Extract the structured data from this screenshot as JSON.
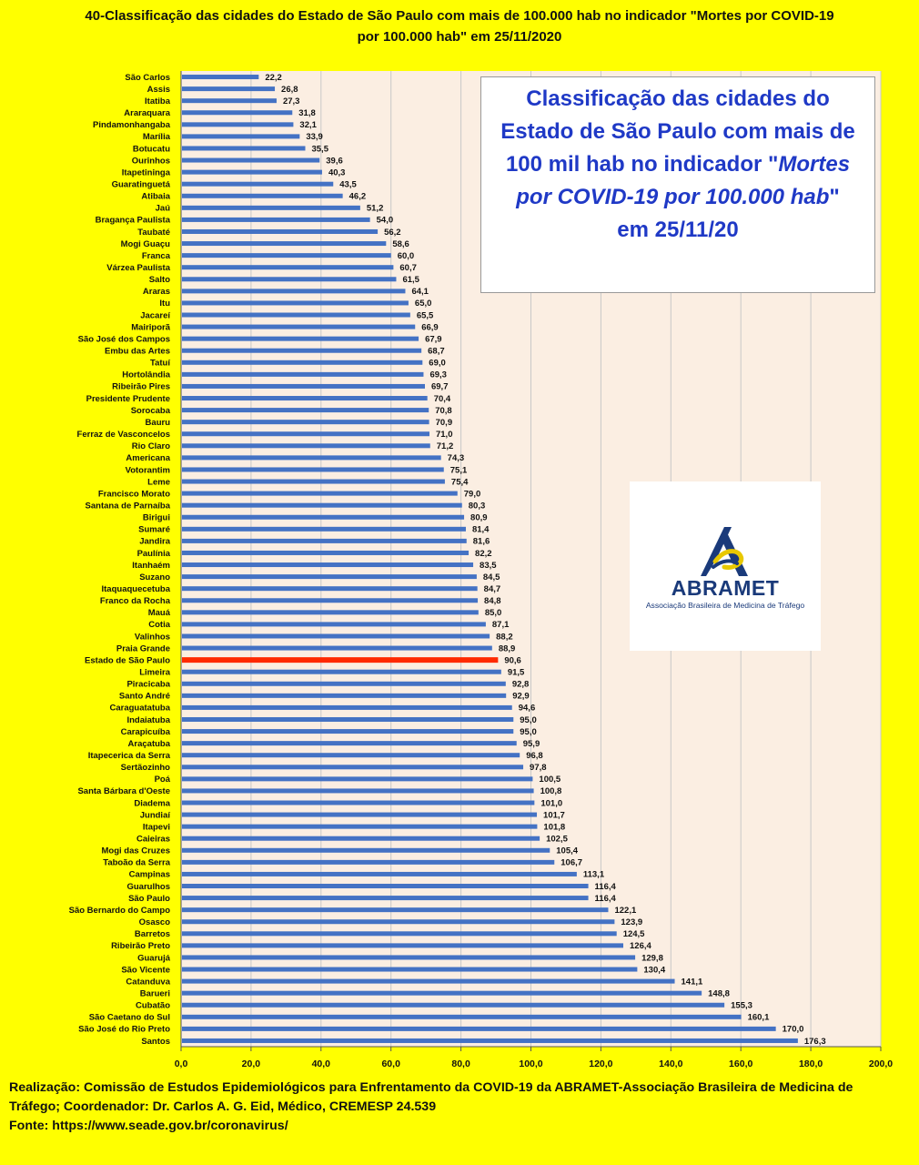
{
  "title_line1": "40-Classificação das cidades do Estado de São Paulo com mais de 100.000 hab no indicador \"Mortes por COVID-19",
  "title_line2": "por 100.000 hab\" em 25/11/2020",
  "info_box": {
    "line1": "Classificação das cidades do",
    "line2": "Estado de São Paulo com mais de",
    "line3a": "100 mil hab  no indicador \"",
    "line3b": "Mortes",
    "line4a": "por COVID-19 por 100.000 hab",
    "line4b": "\"",
    "line5": "em 25/11/20"
  },
  "logo": {
    "name": "ABRAMET",
    "subtitle": "Associação Brasileira de Medicina de Tráfego",
    "colors": {
      "mark": "#1a3a7a",
      "accent": "#e8c800"
    }
  },
  "footer": {
    "line1": "Realização: Comissão de Estudos Epidemiológicos para Enfrentamento da COVID-19 da ABRAMET-Associação Brasileira de Medicina de",
    "line2": "Tráfego;  Coordenador: Dr. Carlos A. G. Eid, Médico, CREMESP 24.539",
    "line3": "Fonte: https://www.seade.gov.br/coronavirus/"
  },
  "chart_data": {
    "type": "bar",
    "orientation": "horizontal",
    "xlim": [
      0,
      200
    ],
    "xticks": [
      "0,0",
      "20,0",
      "40,0",
      "60,0",
      "80,0",
      "100,0",
      "120,0",
      "140,0",
      "160,0",
      "180,0",
      "200,0"
    ],
    "grid": true,
    "colors": {
      "bar": "#4472c4",
      "highlight": "#ff2a00",
      "plot_bg": "#fbeee2",
      "grid": "#c8c8c8"
    },
    "highlight_category": "Estado de São Paulo",
    "categories": [
      "São Carlos",
      "Assis",
      "Itatiba",
      "Araraquara",
      "Pindamonhangaba",
      "Marília",
      "Botucatu",
      "Ourinhos",
      "Itapetininga",
      "Guaratinguetá",
      "Atibaia",
      "Jaú",
      "Bragança Paulista",
      "Taubaté",
      "Mogi Guaçu",
      "Franca",
      "Várzea Paulista",
      "Salto",
      "Araras",
      "Itu",
      "Jacareí",
      "Mairiporã",
      "São José dos Campos",
      "Embu das Artes",
      "Tatuí",
      "Hortolândia",
      "Ribeirão Pires",
      "Presidente Prudente",
      "Sorocaba",
      "Bauru",
      "Ferraz de Vasconcelos",
      "Rio Claro",
      "Americana",
      "Votorantim",
      "Leme",
      "Francisco Morato",
      "Santana de Parnaíba",
      "Birigui",
      "Sumaré",
      "Jandira",
      "Paulínia",
      "Itanhaém",
      "Suzano",
      "Itaquaquecetuba",
      "Franco da Rocha",
      "Mauá",
      "Cotia",
      "Valinhos",
      "Praia Grande",
      "Estado de São Paulo",
      "Limeira",
      "Piracicaba",
      "Santo André",
      "Caraguatatuba",
      "Indaiatuba",
      "Carapicuíba",
      "Araçatuba",
      "Itapecerica da Serra",
      "Sertãozinho",
      "Poá",
      "Santa Bárbara d'Oeste",
      "Diadema",
      "Jundiaí",
      "Itapevi",
      "Caieiras",
      "Mogi das Cruzes",
      "Taboão da Serra",
      "Campinas",
      "Guarulhos",
      "São Paulo",
      "São Bernardo do Campo",
      "Osasco",
      "Barretos",
      "Ribeirão Preto",
      "Guarujá",
      "São Vicente",
      "Catanduva",
      "Barueri",
      "Cubatão",
      "São Caetano do Sul",
      "São José do Rio Preto",
      "Santos"
    ],
    "values": [
      22.2,
      26.8,
      27.3,
      31.8,
      32.1,
      33.9,
      35.5,
      39.6,
      40.3,
      43.5,
      46.2,
      51.2,
      54.0,
      56.2,
      58.6,
      60.0,
      60.7,
      61.5,
      64.1,
      65.0,
      65.5,
      66.9,
      67.9,
      68.7,
      69.0,
      69.3,
      69.7,
      70.4,
      70.8,
      70.9,
      71.0,
      71.2,
      74.3,
      75.1,
      75.4,
      79.0,
      80.3,
      80.9,
      81.4,
      81.6,
      82.2,
      83.5,
      84.5,
      84.7,
      84.8,
      85.0,
      87.1,
      88.2,
      88.9,
      90.6,
      91.5,
      92.8,
      92.9,
      94.6,
      95.0,
      95.0,
      95.9,
      96.8,
      97.8,
      100.5,
      100.8,
      101.0,
      101.7,
      101.8,
      102.5,
      105.4,
      106.7,
      113.1,
      116.4,
      116.4,
      122.1,
      123.9,
      124.5,
      126.4,
      129.8,
      130.4,
      141.1,
      148.8,
      155.3,
      160.1,
      170.0,
      176.3
    ],
    "labels": [
      "22,2",
      "26,8",
      "27,3",
      "31,8",
      "32,1",
      "33,9",
      "35,5",
      "39,6",
      "40,3",
      "43,5",
      "46,2",
      "51,2",
      "54,0",
      "56,2",
      "58,6",
      "60,0",
      "60,7",
      "61,5",
      "64,1",
      "65,0",
      "65,5",
      "66,9",
      "67,9",
      "68,7",
      "69,0",
      "69,3",
      "69,7",
      "70,4",
      "70,8",
      "70,9",
      "71,0",
      "71,2",
      "74,3",
      "75,1",
      "75,4",
      "79,0",
      "80,3",
      "80,9",
      "81,4",
      "81,6",
      "82,2",
      "83,5",
      "84,5",
      "84,7",
      "84,8",
      "85,0",
      "87,1",
      "88,2",
      "88,9",
      "90,6",
      "91,5",
      "92,8",
      "92,9",
      "94,6",
      "95,0",
      "95,0",
      "95,9",
      "96,8",
      "97,8",
      "100,5",
      "100,8",
      "101,0",
      "101,7",
      "101,8",
      "102,5",
      "105,4",
      "106,7",
      "113,1",
      "116,4",
      "116,4",
      "122,1",
      "123,9",
      "124,5",
      "126,4",
      "129,8",
      "130,4",
      "141,1",
      "148,8",
      "155,3",
      "160,1",
      "170,0",
      "176,3"
    ]
  }
}
